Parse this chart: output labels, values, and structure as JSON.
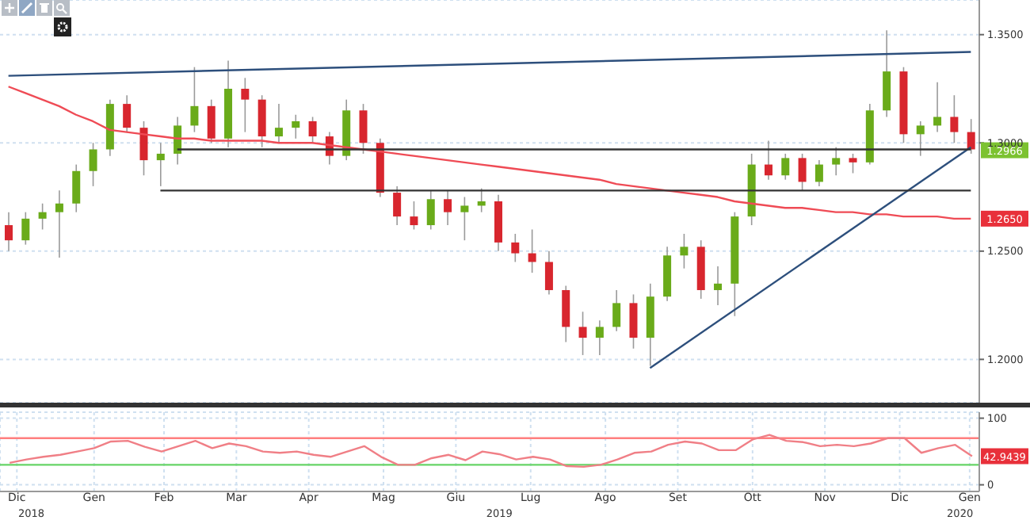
{
  "chart_data": [
    {
      "type": "candlestick",
      "categories": [
        null,
        null,
        null,
        null,
        null,
        null,
        null,
        null,
        null,
        null,
        null,
        null,
        null,
        null,
        null,
        null,
        null,
        null,
        null,
        null,
        null,
        null,
        null,
        null,
        null,
        null,
        null,
        null,
        null,
        null,
        null,
        null,
        null,
        null,
        null,
        null,
        null,
        null,
        null,
        null,
        null,
        null,
        null,
        null,
        null,
        null,
        null,
        null,
        null,
        null,
        null,
        null,
        null,
        null,
        null,
        null,
        null,
        null
      ],
      "ohlc": [
        [
          1.262,
          1.268,
          1.25,
          1.255
        ],
        [
          1.255,
          1.268,
          1.253,
          1.265
        ],
        [
          1.265,
          1.272,
          1.26,
          1.268
        ],
        [
          1.268,
          1.278,
          1.247,
          1.272
        ],
        [
          1.272,
          1.29,
          1.268,
          1.287
        ],
        [
          1.287,
          1.3,
          1.28,
          1.297
        ],
        [
          1.297,
          1.32,
          1.294,
          1.318
        ],
        [
          1.318,
          1.322,
          1.305,
          1.307
        ],
        [
          1.307,
          1.31,
          1.285,
          1.292
        ],
        [
          1.292,
          1.3,
          1.28,
          1.295
        ],
        [
          1.295,
          1.312,
          1.29,
          1.308
        ],
        [
          1.308,
          1.335,
          1.305,
          1.317
        ],
        [
          1.317,
          1.32,
          1.3,
          1.302
        ],
        [
          1.302,
          1.338,
          1.298,
          1.325
        ],
        [
          1.325,
          1.33,
          1.305,
          1.32
        ],
        [
          1.32,
          1.322,
          1.298,
          1.303
        ],
        [
          1.303,
          1.318,
          1.3,
          1.307
        ],
        [
          1.307,
          1.313,
          1.302,
          1.31
        ],
        [
          1.31,
          1.312,
          1.3,
          1.303
        ],
        [
          1.303,
          1.305,
          1.29,
          1.294
        ],
        [
          1.294,
          1.32,
          1.292,
          1.315
        ],
        [
          1.315,
          1.318,
          1.295,
          1.3
        ],
        [
          1.3,
          1.302,
          1.275,
          1.277
        ],
        [
          1.277,
          1.28,
          1.262,
          1.266
        ],
        [
          1.266,
          1.273,
          1.26,
          1.262
        ],
        [
          1.262,
          1.278,
          1.26,
          1.274
        ],
        [
          1.274,
          1.278,
          1.262,
          1.268
        ],
        [
          1.268,
          1.275,
          1.255,
          1.271
        ],
        [
          1.271,
          1.279,
          1.268,
          1.273
        ],
        [
          1.273,
          1.276,
          1.25,
          1.254
        ],
        [
          1.254,
          1.258,
          1.245,
          1.249
        ],
        [
          1.249,
          1.26,
          1.24,
          1.245
        ],
        [
          1.245,
          1.25,
          1.23,
          1.232
        ],
        [
          1.232,
          1.234,
          1.208,
          1.215
        ],
        [
          1.215,
          1.222,
          1.202,
          1.21
        ],
        [
          1.21,
          1.218,
          1.202,
          1.215
        ],
        [
          1.215,
          1.232,
          1.213,
          1.226
        ],
        [
          1.226,
          1.23,
          1.205,
          1.21
        ],
        [
          1.21,
          1.235,
          1.197,
          1.229
        ],
        [
          1.229,
          1.252,
          1.227,
          1.248
        ],
        [
          1.248,
          1.258,
          1.242,
          1.252
        ],
        [
          1.252,
          1.255,
          1.228,
          1.232
        ],
        [
          1.232,
          1.243,
          1.225,
          1.235
        ],
        [
          1.235,
          1.268,
          1.22,
          1.266
        ],
        [
          1.266,
          1.295,
          1.262,
          1.29
        ],
        [
          1.29,
          1.301,
          1.283,
          1.285
        ],
        [
          1.285,
          1.295,
          1.283,
          1.293
        ],
        [
          1.293,
          1.295,
          1.278,
          1.282
        ],
        [
          1.282,
          1.292,
          1.28,
          1.29
        ],
        [
          1.29,
          1.298,
          1.285,
          1.293
        ],
        [
          1.293,
          1.295,
          1.286,
          1.291
        ],
        [
          1.291,
          1.318,
          1.29,
          1.315
        ],
        [
          1.315,
          1.352,
          1.312,
          1.333
        ],
        [
          1.333,
          1.335,
          1.3,
          1.304
        ],
        [
          1.304,
          1.31,
          1.294,
          1.308
        ],
        [
          1.308,
          1.328,
          1.305,
          1.312
        ],
        [
          1.312,
          1.322,
          1.3,
          1.305
        ],
        [
          1.305,
          1.311,
          1.295,
          1.297
        ]
      ],
      "colors": [
        "#d8262e",
        "#6aab1a",
        "#6aab1a",
        "#6aab1a",
        "#6aab1a",
        "#6aab1a",
        "#6aab1a",
        "#d8262e",
        "#d8262e",
        "#6aab1a",
        "#6aab1a",
        "#6aab1a",
        "#d8262e",
        "#6aab1a",
        "#d8262e",
        "#d8262e",
        "#6aab1a",
        "#6aab1a",
        "#d8262e",
        "#d8262e",
        "#6aab1a",
        "#d8262e",
        "#d8262e",
        "#d8262e",
        "#d8262e",
        "#6aab1a",
        "#d8262e",
        "#6aab1a",
        "#6aab1a",
        "#d8262e",
        "#d8262e",
        "#d8262e",
        "#d8262e",
        "#d8262e",
        "#d8262e",
        "#6aab1a",
        "#6aab1a",
        "#d8262e",
        "#6aab1a",
        "#6aab1a",
        "#6aab1a",
        "#d8262e",
        "#6aab1a",
        "#6aab1a",
        "#6aab1a",
        "#d8262e",
        "#6aab1a",
        "#d8262e",
        "#6aab1a",
        "#6aab1a",
        "#d8262e",
        "#6aab1a",
        "#6aab1a",
        "#d8262e",
        "#6aab1a",
        "#6aab1a",
        "#d8262e",
        "#d8262e"
      ],
      "series": [
        {
          "type": "line",
          "color": "#ef4b55",
          "values": [
            1.326,
            1.323,
            1.32,
            1.317,
            1.313,
            1.31,
            1.306,
            1.305,
            1.304,
            1.303,
            1.302,
            1.302,
            1.301,
            1.301,
            1.301,
            1.301,
            1.3,
            1.3,
            1.3,
            1.299,
            1.298,
            1.297,
            1.296,
            1.295,
            1.294,
            1.293,
            1.292,
            1.291,
            1.29,
            1.289,
            1.288,
            1.287,
            1.286,
            1.285,
            1.284,
            1.283,
            1.281,
            1.28,
            1.279,
            1.278,
            1.277,
            1.276,
            1.275,
            1.273,
            1.272,
            1.271,
            1.27,
            1.27,
            1.269,
            1.268,
            1.268,
            1.267,
            1.267,
            1.266,
            1.266,
            1.266,
            1.265,
            1.265
          ]
        },
        {
          "type": "line",
          "color": "#2d4f7c",
          "values": [
            1.331,
            null,
            null,
            null,
            null,
            null,
            null,
            null,
            null,
            null,
            null,
            null,
            null,
            null,
            null,
            null,
            null,
            null,
            null,
            null,
            null,
            null,
            null,
            null,
            null,
            null,
            null,
            null,
            null,
            null,
            null,
            null,
            null,
            null,
            null,
            null,
            null,
            null,
            null,
            null,
            null,
            null,
            null,
            null,
            null,
            null,
            null,
            null,
            null,
            null,
            null,
            null,
            null,
            null,
            null,
            null,
            null,
            1.342
          ]
        },
        {
          "type": "line",
          "color": "#2d4f7c",
          "values": [
            null,
            null,
            null,
            null,
            null,
            null,
            null,
            null,
            null,
            null,
            null,
            null,
            null,
            null,
            null,
            null,
            null,
            null,
            null,
            null,
            null,
            null,
            null,
            null,
            null,
            null,
            null,
            null,
            null,
            null,
            null,
            null,
            null,
            null,
            null,
            null,
            null,
            null,
            1.196,
            null,
            null,
            null,
            null,
            null,
            null,
            null,
            null,
            null,
            null,
            null,
            null,
            null,
            null,
            null,
            null,
            null,
            null,
            1.298
          ]
        },
        {
          "type": "line",
          "color": "#333333",
          "values": [
            null,
            null,
            null,
            null,
            null,
            null,
            null,
            null,
            null,
            null,
            1.297,
            null,
            null,
            null,
            null,
            null,
            null,
            null,
            null,
            null,
            null,
            null,
            null,
            null,
            null,
            null,
            null,
            null,
            null,
            null,
            null,
            null,
            null,
            null,
            null,
            null,
            null,
            null,
            null,
            null,
            null,
            null,
            null,
            null,
            null,
            null,
            null,
            null,
            null,
            null,
            null,
            null,
            null,
            null,
            null,
            null,
            null,
            1.297
          ]
        },
        {
          "type": "line",
          "color": "#333333",
          "values": [
            null,
            null,
            null,
            null,
            null,
            null,
            null,
            null,
            null,
            1.278,
            null,
            null,
            null,
            null,
            null,
            null,
            null,
            null,
            null,
            null,
            null,
            null,
            null,
            null,
            null,
            null,
            null,
            null,
            null,
            null,
            null,
            null,
            null,
            null,
            null,
            null,
            null,
            null,
            null,
            null,
            null,
            null,
            null,
            null,
            null,
            null,
            null,
            null,
            null,
            null,
            null,
            null,
            null,
            null,
            null,
            null,
            null,
            1.278
          ]
        }
      ],
      "ylim": [
        1.18,
        1.366
      ],
      "yticks": [
        {
          "value": 1.2,
          "label": "1.2000"
        },
        {
          "value": 1.25,
          "label": "1.2500"
        },
        {
          "value": 1.3,
          "label": "1.3000"
        },
        {
          "value": 1.35,
          "label": "1.3500"
        }
      ],
      "annotations": [
        {
          "text": "1.2966",
          "y": 1.2966
        },
        {
          "text": "1.2650",
          "y": 1.265
        }
      ],
      "grid": "y",
      "marker": "none",
      "tick_labels": "y"
    },
    {
      "type": "line",
      "color": "#f07f86",
      "x": [
        "2018-12-12",
        "2018-12-19",
        "2018-12-26",
        "2019-01-02",
        "2019-01-09",
        "2019-01-16",
        "2019-01-23",
        "2019-01-30",
        "2019-02-06",
        "2019-02-13",
        "2019-02-20",
        "2019-02-27",
        "2019-03-06",
        "2019-03-13",
        "2019-03-20",
        "2019-03-27",
        "2019-04-03",
        "2019-04-10",
        "2019-04-17",
        "2019-04-24",
        "2019-05-01",
        "2019-05-08",
        "2019-05-15",
        "2019-05-22",
        "2019-05-29",
        "2019-06-05",
        "2019-06-12",
        "2019-06-19",
        "2019-06-26",
        "2019-07-03",
        "2019-07-10",
        "2019-07-17",
        "2019-07-24",
        "2019-07-31",
        "2019-08-07",
        "2019-08-14",
        "2019-08-21",
        "2019-08-28",
        "2019-09-04",
        "2019-09-11",
        "2019-09-18",
        "2019-09-25",
        "2019-10-02",
        "2019-10-09",
        "2019-10-16",
        "2019-10-23",
        "2019-10-30",
        "2019-11-06",
        "2019-11-13",
        "2019-11-20",
        "2019-11-27",
        "2019-12-04",
        "2019-12-11",
        "2019-12-18",
        "2019-12-25",
        "2020-01-01",
        "2020-01-08",
        "2020-01-15"
      ],
      "values": [
        33,
        38,
        42,
        45,
        50,
        55,
        65,
        66,
        57,
        50,
        58,
        66,
        55,
        62,
        58,
        50,
        48,
        50,
        45,
        42,
        50,
        58,
        42,
        30,
        30,
        40,
        45,
        37,
        50,
        46,
        38,
        42,
        38,
        28,
        27,
        30,
        38,
        48,
        50,
        60,
        65,
        62,
        52,
        52,
        68,
        75,
        66,
        64,
        58,
        60,
        58,
        62,
        70,
        70,
        48,
        55,
        60,
        43
      ],
      "xlim": [
        "2018-12-08",
        "2020-01-18"
      ],
      "xticks": [
        {
          "value": "2018-12-15",
          "label": "Dic"
        },
        {
          "value": "2019-01-16",
          "label": "Gen"
        },
        {
          "value": "2019-02-14",
          "label": "Feb"
        },
        {
          "value": "2019-03-16",
          "label": "Mar"
        },
        {
          "value": "2019-04-15",
          "label": "Apr"
        },
        {
          "value": "2019-05-16",
          "label": "Mag"
        },
        {
          "value": "2019-06-15",
          "label": "Giu"
        },
        {
          "value": "2019-07-16",
          "label": "Lug"
        },
        {
          "value": "2019-08-16",
          "label": "Ago"
        },
        {
          "value": "2019-09-15",
          "label": "Set"
        },
        {
          "value": "2019-10-16",
          "label": "Ott"
        },
        {
          "value": "2019-11-15",
          "label": "Nov"
        },
        {
          "value": "2019-12-16",
          "label": "Dic"
        },
        {
          "value": "2020-01-14",
          "label": "Gen"
        }
      ],
      "x2lim": [
        "2018-12-08",
        "2020-01-18"
      ],
      "x2ticks": [
        {
          "value": "2018-12-21",
          "label": "2018"
        },
        {
          "value": "2019-07-03",
          "label": "2019"
        },
        {
          "value": "2020-01-10",
          "label": "2020"
        }
      ],
      "ylim": [
        -10,
        109
      ],
      "yticks": [
        0,
        100
      ],
      "ref_lines": [
        {
          "axis": "y",
          "value": 70,
          "color": "#ff7f7f"
        },
        {
          "axis": "y",
          "value": 30,
          "color": "#66d466"
        }
      ],
      "annotations": [
        {
          "text": "42.9439",
          "x": "2020-01-15",
          "y": 42.9439
        }
      ],
      "grid": true,
      "marker": "none"
    }
  ]
}
